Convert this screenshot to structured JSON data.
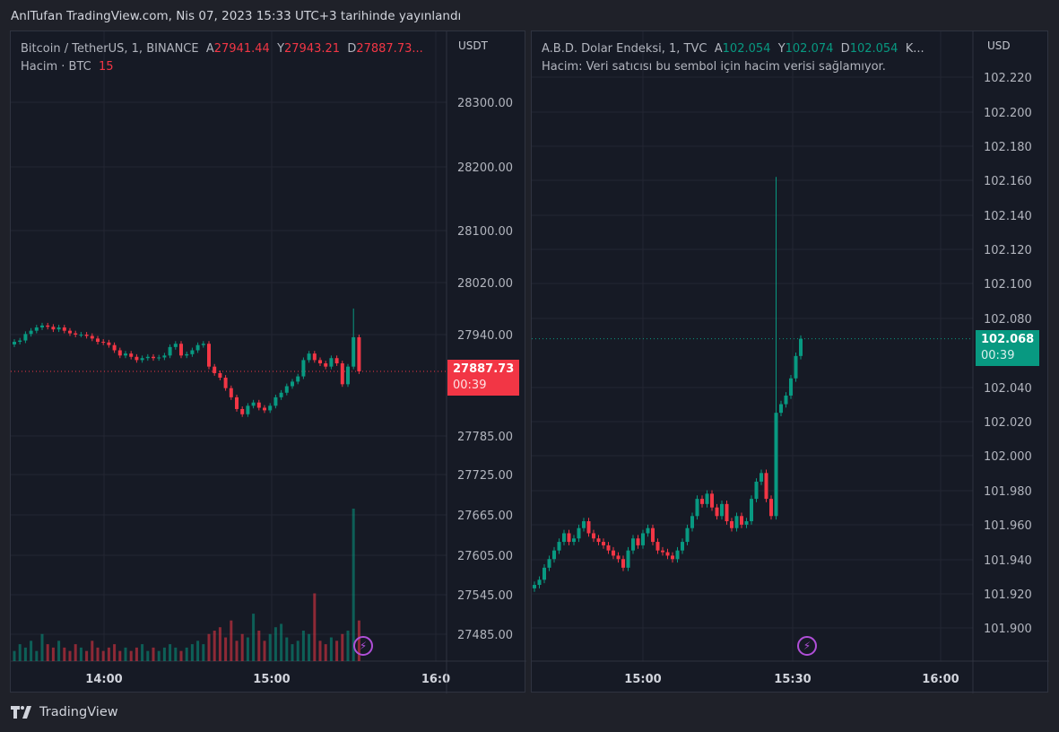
{
  "header": {
    "title": "AnlTufan TradingView.com, Nis 07, 2023 15:33 UTC+3 tarihinde yayınlandı"
  },
  "footer": {
    "brand": "TradingView",
    "logo_icon": "tradingview-logo-icon"
  },
  "colors": {
    "up": "#089981",
    "down": "#f23645",
    "grid": "#232632",
    "bolt": "#b04fd8"
  },
  "charts": [
    {
      "symbol": "Bitcoin / TetherUS, 1, BINANCE",
      "o_label": "A",
      "o": "27941.44",
      "h_label": "Y",
      "h": "27943.21",
      "l_label": "D",
      "l": "27887.73...",
      "volume_label": "Hacim · BTC",
      "volume_value": "15",
      "currency": "USDT",
      "last_price": "27887.73",
      "countdown": "00:39",
      "last_direction": "down",
      "price_ticks": [
        "28300.00",
        "28200.00",
        "28100.00",
        "28020.00",
        "27940.00",
        "27785.00",
        "27725.00",
        "27665.00",
        "27605.00",
        "27545.00",
        "27485.00"
      ],
      "time_ticks": [
        "14:00",
        "15:00",
        "16:0"
      ],
      "closes": [
        27933,
        27935,
        27945,
        27950,
        27955,
        27958,
        27956,
        27952,
        27955,
        27950,
        27946,
        27944,
        27944,
        27942,
        27938,
        27933,
        27932,
        27928,
        27920,
        27912,
        27915,
        27910,
        27905,
        27908,
        27910,
        27908,
        27909,
        27912,
        27925,
        27930,
        27912,
        27914,
        27920,
        27928,
        27930,
        27895,
        27885,
        27878,
        27862,
        27848,
        27830,
        27822,
        27835,
        27840,
        27832,
        27828,
        27835,
        27848,
        27855,
        27865,
        27872,
        27880,
        27905,
        27915,
        27905,
        27900,
        27895,
        27908,
        27900,
        27868,
        27895,
        27940,
        27887.73
      ],
      "spike_high": 27984,
      "volumes": [
        3,
        5,
        4,
        6,
        3,
        8,
        5,
        4,
        6,
        4,
        3,
        5,
        4,
        3,
        6,
        4,
        3,
        4,
        5,
        3,
        4,
        3,
        4,
        5,
        3,
        4,
        3,
        4,
        5,
        4,
        3,
        4,
        5,
        6,
        5,
        8,
        9,
        10,
        7,
        12,
        6,
        8,
        7,
        14,
        9,
        6,
        8,
        10,
        11,
        7,
        5,
        6,
        9,
        8,
        20,
        6,
        5,
        7,
        6,
        8,
        9,
        45,
        12
      ]
    },
    {
      "symbol": "A.B.D. Dolar Endeksi, 1, TVC",
      "o_label": "A",
      "o": "102.054",
      "h_label": "Y",
      "h": "102.074",
      "l_label": "D",
      "l": "102.054",
      "extra": "K...",
      "volume_label": "Hacim: Veri satıcısı bu sembol için hacim verisi sağlamıyor.",
      "currency": "USD",
      "last_price": "102.068",
      "countdown": "00:39",
      "last_direction": "up",
      "price_ticks": [
        "102.220",
        "102.200",
        "102.180",
        "102.160",
        "102.140",
        "102.120",
        "102.100",
        "102.080",
        "102.040",
        "102.020",
        "102.000",
        "101.980",
        "101.960",
        "101.940",
        "101.920",
        "101.900"
      ],
      "time_ticks": [
        "15:00",
        "15:30",
        "16:00"
      ],
      "closes": [
        101.925,
        101.928,
        101.935,
        101.94,
        101.945,
        101.95,
        101.955,
        101.95,
        101.952,
        101.958,
        101.962,
        101.955,
        101.952,
        101.95,
        101.948,
        101.945,
        101.942,
        101.94,
        101.935,
        101.945,
        101.952,
        101.948,
        101.955,
        101.958,
        101.95,
        101.945,
        101.944,
        101.942,
        101.94,
        101.945,
        101.95,
        101.958,
        101.965,
        101.975,
        101.972,
        101.978,
        101.97,
        101.965,
        101.972,
        101.962,
        101.958,
        101.965,
        101.96,
        101.962,
        101.975,
        101.985,
        101.99,
        101.975,
        101.965,
        102.025,
        102.03,
        102.035,
        102.045,
        102.058,
        102.068
      ],
      "spike_high": 102.162
    }
  ]
}
